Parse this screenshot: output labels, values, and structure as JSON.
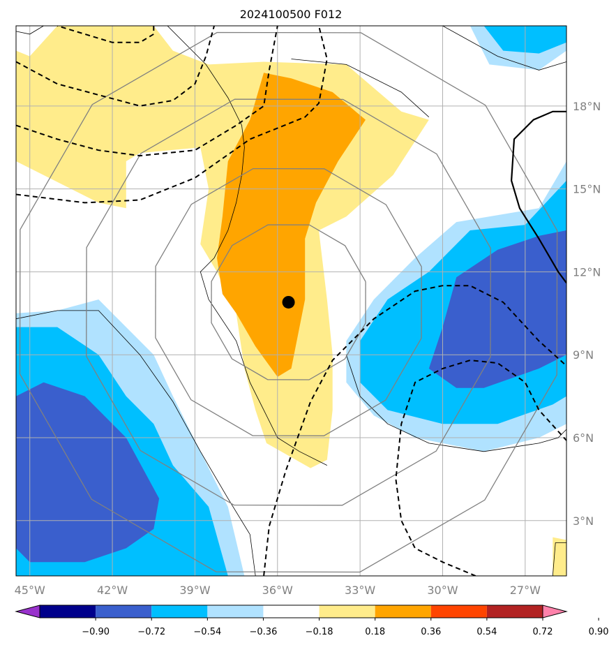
{
  "chart_data": {
    "type": "contour-map",
    "title": "2024100500 F012",
    "x_axis": {
      "ticks": [
        -45,
        -42,
        -39,
        -36,
        -33,
        -30,
        -27
      ],
      "tick_labels": [
        "45°W",
        "42°W",
        "39°W",
        "36°W",
        "33°W",
        "30°W",
        "27°W"
      ],
      "range": [
        -45.5,
        -25.5
      ]
    },
    "y_axis": {
      "ticks": [
        3,
        6,
        9,
        12,
        15,
        18
      ],
      "tick_labels": [
        "3°N",
        "6°N",
        "9°N",
        "12°N",
        "15°N",
        "18°N"
      ],
      "range": [
        1.0,
        20.9
      ]
    },
    "grid": true,
    "center_marker": {
      "lon": -35.6,
      "lat": 10.9
    },
    "colorbar": {
      "levels": [
        -0.9,
        -0.72,
        -0.54,
        -0.36,
        -0.18,
        0.18,
        0.36,
        0.54,
        0.72,
        0.9
      ],
      "labels": [
        "−0.90",
        "−0.72",
        "−0.54",
        "−0.36",
        "−0.18",
        "0.18",
        "0.36",
        "0.54",
        "0.72",
        "0.90"
      ],
      "colors": [
        "#9932cc",
        "#00008b",
        "#3a5fcd",
        "#00bfff",
        "#b0e2ff",
        "#ffffff",
        "#ffec8b",
        "#ffa500",
        "#ff4500",
        "#b22222",
        "#ff82ab"
      ],
      "extend": "both"
    },
    "range_rings": {
      "center_lon": -35.6,
      "center_lat": 10.9,
      "radii_deg": [
        2.9,
        5.0,
        7.6,
        10.1
      ]
    },
    "filled_regions": [
      {
        "level": 0.18,
        "color": "#ffec8b",
        "points": [
          [
            -45.5,
            20.0
          ],
          [
            -45.0,
            19.8
          ],
          [
            -44.0,
            20.9
          ],
          [
            -40.5,
            20.9
          ],
          [
            -39.8,
            20.0
          ],
          [
            -38.5,
            19.5
          ],
          [
            -36.5,
            19.6
          ],
          [
            -33.5,
            19.5
          ],
          [
            -31.5,
            17.8
          ],
          [
            -30.5,
            17.5
          ],
          [
            -31.8,
            15.5
          ],
          [
            -33.5,
            14.0
          ],
          [
            -34.5,
            13.5
          ],
          [
            -34.2,
            11.0
          ],
          [
            -34.0,
            9.0
          ],
          [
            -34.0,
            7.0
          ],
          [
            -34.2,
            5.2
          ],
          [
            -34.8,
            4.9
          ],
          [
            -36.4,
            5.8
          ],
          [
            -36.8,
            7.0
          ],
          [
            -37.2,
            8.5
          ],
          [
            -37.5,
            10.5
          ],
          [
            -38.2,
            12.0
          ],
          [
            -38.8,
            13.0
          ],
          [
            -38.5,
            15.0
          ],
          [
            -38.8,
            16.5
          ],
          [
            -41.0,
            16.3
          ],
          [
            -41.5,
            16.0
          ],
          [
            -41.5,
            14.3
          ],
          [
            -42.5,
            14.5
          ],
          [
            -45.5,
            16.0
          ]
        ]
      },
      {
        "level": 0.36,
        "color": "#ffa500",
        "points": [
          [
            -36.5,
            19.2
          ],
          [
            -35.5,
            19.0
          ],
          [
            -34.0,
            18.5
          ],
          [
            -32.8,
            17.5
          ],
          [
            -33.8,
            16.0
          ],
          [
            -34.6,
            14.5
          ],
          [
            -35.0,
            13.2
          ],
          [
            -35.0,
            11.0
          ],
          [
            -35.3,
            9.5
          ],
          [
            -35.5,
            8.5
          ],
          [
            -36.0,
            8.2
          ],
          [
            -36.8,
            9.3
          ],
          [
            -37.5,
            10.5
          ],
          [
            -38.0,
            11.2
          ],
          [
            -38.2,
            12.5
          ],
          [
            -38.0,
            14.0
          ],
          [
            -37.8,
            16.0
          ],
          [
            -37.0,
            17.5
          ]
        ]
      },
      {
        "level": -0.18,
        "color": "#b0e2ff",
        "points": [
          [
            -45.5,
            10.5
          ],
          [
            -44.0,
            10.6
          ],
          [
            -42.5,
            11.0
          ],
          [
            -41.5,
            10.0
          ],
          [
            -40.5,
            9.0
          ],
          [
            -39.8,
            7.5
          ],
          [
            -38.8,
            5.5
          ],
          [
            -37.8,
            3.5
          ],
          [
            -37.2,
            1.0
          ],
          [
            -45.5,
            1.0
          ]
        ]
      },
      {
        "level": -0.36,
        "color": "#00bfff",
        "points": [
          [
            -45.5,
            10.0
          ],
          [
            -44.0,
            10.0
          ],
          [
            -42.5,
            9.0
          ],
          [
            -41.5,
            7.5
          ],
          [
            -40.5,
            6.5
          ],
          [
            -39.8,
            5.0
          ],
          [
            -38.5,
            3.5
          ],
          [
            -37.8,
            1.0
          ],
          [
            -45.5,
            1.0
          ]
        ]
      },
      {
        "level": -0.54,
        "color": "#3a5fcd",
        "points": [
          [
            -45.5,
            7.5
          ],
          [
            -44.5,
            8.0
          ],
          [
            -43.0,
            7.5
          ],
          [
            -41.5,
            6.0
          ],
          [
            -40.3,
            3.8
          ],
          [
            -40.5,
            2.7
          ],
          [
            -41.5,
            2.0
          ],
          [
            -43.0,
            1.5
          ],
          [
            -45.0,
            1.5
          ],
          [
            -45.5,
            2.0
          ]
        ]
      },
      {
        "level": -0.18,
        "color": "#b0e2ff",
        "points": [
          [
            -25.5,
            16.0
          ],
          [
            -26.5,
            14.3
          ],
          [
            -29.5,
            13.8
          ],
          [
            -31.0,
            12.5
          ],
          [
            -32.5,
            11.0
          ],
          [
            -33.5,
            9.5
          ],
          [
            -33.5,
            8.0
          ],
          [
            -32.5,
            6.8
          ],
          [
            -31.0,
            6.0
          ],
          [
            -28.5,
            5.5
          ],
          [
            -26.5,
            6.0
          ],
          [
            -25.5,
            6.5
          ]
        ]
      },
      {
        "level": -0.36,
        "color": "#00bfff",
        "points": [
          [
            -25.5,
            15.3
          ],
          [
            -27.0,
            13.7
          ],
          [
            -29.0,
            13.5
          ],
          [
            -30.5,
            12.0
          ],
          [
            -32.0,
            11.0
          ],
          [
            -33.0,
            9.5
          ],
          [
            -33.0,
            8.0
          ],
          [
            -32.0,
            7.0
          ],
          [
            -30.0,
            6.5
          ],
          [
            -28.0,
            6.5
          ],
          [
            -26.0,
            7.2
          ],
          [
            -25.5,
            7.5
          ]
        ]
      },
      {
        "level": -0.54,
        "color": "#3a5fcd",
        "points": [
          [
            -25.5,
            13.5
          ],
          [
            -26.5,
            13.3
          ],
          [
            -28.0,
            12.8
          ],
          [
            -29.5,
            11.8
          ],
          [
            -30.0,
            10.0
          ],
          [
            -30.5,
            8.5
          ],
          [
            -29.5,
            7.8
          ],
          [
            -28.5,
            7.8
          ],
          [
            -26.5,
            8.5
          ],
          [
            -25.5,
            9.0
          ]
        ]
      },
      {
        "level": -0.18,
        "color": "#b0e2ff",
        "points": [
          [
            -29.0,
            20.9
          ],
          [
            -28.3,
            19.5
          ],
          [
            -26.5,
            19.3
          ],
          [
            -25.5,
            20.0
          ],
          [
            -25.5,
            20.9
          ]
        ]
      },
      {
        "level": -0.36,
        "color": "#00bfff",
        "points": [
          [
            -28.5,
            20.9
          ],
          [
            -27.8,
            20.0
          ],
          [
            -26.5,
            19.9
          ],
          [
            -25.5,
            20.3
          ],
          [
            -25.5,
            20.9
          ]
        ]
      },
      {
        "level": 0.18,
        "color": "#ffec8b",
        "points": [
          [
            -26.0,
            1.0
          ],
          [
            -26.0,
            2.4
          ],
          [
            -25.5,
            2.3
          ],
          [
            -25.5,
            1.0
          ]
        ]
      }
    ],
    "dashed_contours": [
      [
        [
          -40.5,
          20.9
        ],
        [
          -40.5,
          20.6
        ],
        [
          -41.0,
          20.3
        ],
        [
          -42.0,
          20.3
        ],
        [
          -43.0,
          20.6
        ],
        [
          -44.0,
          20.9
        ]
      ],
      [
        [
          -45.5,
          19.6
        ],
        [
          -44.0,
          18.8
        ],
        [
          -42.5,
          18.4
        ],
        [
          -41.0,
          18.0
        ],
        [
          -39.8,
          18.2
        ],
        [
          -39.0,
          18.8
        ],
        [
          -38.6,
          19.8
        ],
        [
          -38.3,
          20.9
        ]
      ],
      [
        [
          -45.5,
          17.3
        ],
        [
          -44.0,
          16.8
        ],
        [
          -42.5,
          16.4
        ],
        [
          -41.0,
          16.2
        ],
        [
          -39.0,
          16.4
        ],
        [
          -37.5,
          17.3
        ],
        [
          -36.5,
          18.0
        ],
        [
          -36.3,
          19.3
        ],
        [
          -36.0,
          20.9
        ]
      ],
      [
        [
          -45.5,
          14.8
        ],
        [
          -43.0,
          14.5
        ],
        [
          -41.0,
          14.6
        ],
        [
          -39.0,
          15.4
        ],
        [
          -37.0,
          16.8
        ],
        [
          -35.0,
          17.6
        ],
        [
          -34.5,
          18.1
        ],
        [
          -34.2,
          19.7
        ],
        [
          -34.5,
          20.9
        ]
      ],
      [
        [
          -36.5,
          1.0
        ],
        [
          -36.3,
          2.8
        ],
        [
          -35.7,
          4.8
        ],
        [
          -34.8,
          7.3
        ],
        [
          -34.0,
          8.8
        ],
        [
          -32.5,
          10.3
        ],
        [
          -31.0,
          11.3
        ],
        [
          -30.0,
          11.5
        ],
        [
          -29.0,
          11.5
        ],
        [
          -27.8,
          10.9
        ],
        [
          -26.5,
          9.5
        ],
        [
          -25.5,
          8.6
        ]
      ],
      [
        [
          -28.8,
          1.0
        ],
        [
          -30.0,
          1.5
        ],
        [
          -31.0,
          2.0
        ],
        [
          -31.5,
          3.0
        ],
        [
          -31.7,
          4.5
        ],
        [
          -31.5,
          6.5
        ],
        [
          -31.0,
          8.0
        ],
        [
          -30.0,
          8.5
        ],
        [
          -29.0,
          8.8
        ],
        [
          -28.0,
          8.7
        ],
        [
          -27.0,
          8.0
        ],
        [
          -26.5,
          7.0
        ],
        [
          -25.5,
          5.9
        ]
      ]
    ],
    "solid_contour": [
      [
        -25.5,
        17.8
      ],
      [
        -26.0,
        17.8
      ],
      [
        -26.7,
        17.5
      ],
      [
        -27.4,
        16.8
      ],
      [
        -27.5,
        15.3
      ],
      [
        -27.2,
        14.3
      ],
      [
        -26.5,
        13.2
      ],
      [
        -25.8,
        12.0
      ],
      [
        -25.5,
        11.6
      ]
    ],
    "coastline": [
      [
        [
          -45.5,
          20.7
        ],
        [
          -45.0,
          20.6
        ],
        [
          -44.5,
          20.9
        ]
      ],
      [
        [
          -40.0,
          20.9
        ],
        [
          -38.6,
          19.5
        ],
        [
          -37.8,
          18.3
        ],
        [
          -37.3,
          17.3
        ],
        [
          -37.2,
          16.5
        ],
        [
          -37.3,
          15.5
        ],
        [
          -37.5,
          14.5
        ],
        [
          -37.8,
          13.5
        ],
        [
          -38.3,
          12.5
        ],
        [
          -38.8,
          12.0
        ],
        [
          -38.5,
          11.0
        ],
        [
          -37.5,
          9.5
        ],
        [
          -37.0,
          8.0
        ],
        [
          -36.5,
          7.0
        ],
        [
          -36.0,
          6.0
        ],
        [
          -35.2,
          5.5
        ],
        [
          -34.2,
          5.0
        ]
      ],
      [
        [
          -45.5,
          10.3
        ],
        [
          -44.0,
          10.6
        ],
        [
          -42.5,
          10.6
        ],
        [
          -41.0,
          9.0
        ],
        [
          -39.8,
          7.3
        ],
        [
          -38.8,
          5.5
        ],
        [
          -37.8,
          3.8
        ],
        [
          -37.0,
          2.5
        ],
        [
          -36.8,
          1.0
        ]
      ],
      [
        [
          -33.5,
          9.0
        ],
        [
          -33.0,
          7.5
        ],
        [
          -32.0,
          6.5
        ],
        [
          -30.5,
          5.8
        ],
        [
          -28.5,
          5.5
        ],
        [
          -26.5,
          5.8
        ],
        [
          -25.8,
          6.0
        ],
        [
          -25.5,
          6.3
        ]
      ],
      [
        [
          -35.5,
          19.7
        ],
        [
          -33.5,
          19.5
        ],
        [
          -31.5,
          18.5
        ],
        [
          -30.5,
          17.6
        ]
      ],
      [
        [
          -30.0,
          20.9
        ],
        [
          -28.0,
          19.8
        ],
        [
          -26.5,
          19.3
        ],
        [
          -25.5,
          19.6
        ]
      ],
      [
        [
          -26.0,
          1.0
        ],
        [
          -25.9,
          2.2
        ],
        [
          -25.5,
          2.2
        ]
      ]
    ]
  }
}
